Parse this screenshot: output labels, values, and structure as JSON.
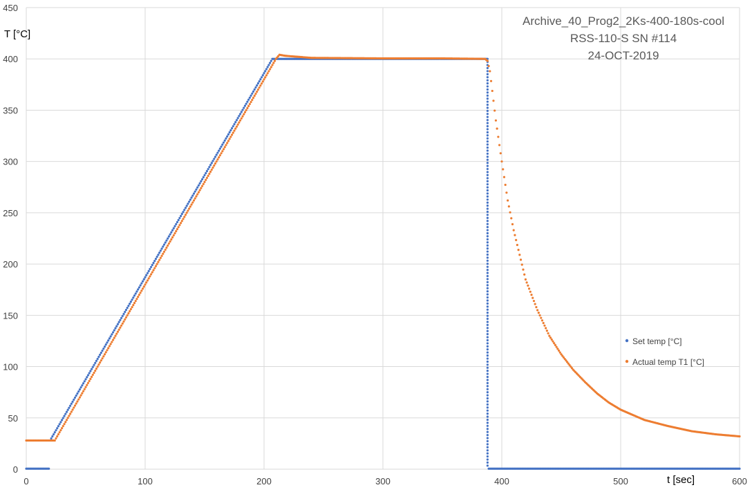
{
  "chart_data": {
    "type": "scatter",
    "title_lines": [
      "Archive_40_Prog2_2Ks-400-180s-cool",
      "RSS-110-S SN #114",
      "24-OCT-2019"
    ],
    "xlabel": "t [sec]",
    "ylabel": "T [°C]",
    "xlim": [
      0,
      600
    ],
    "ylim": [
      0,
      450
    ],
    "xticks": [
      0,
      100,
      200,
      300,
      400,
      500,
      600
    ],
    "yticks": [
      0,
      50,
      100,
      150,
      200,
      250,
      300,
      350,
      400,
      450
    ],
    "grid": true,
    "legend_position": "right",
    "series": [
      {
        "name": "Set temp [°C]",
        "color": "#4472C4",
        "marker": "dot",
        "points": [
          [
            0,
            0.5
          ],
          [
            19,
            0.5
          ],
          [
            20,
            28
          ],
          [
            207,
            400
          ],
          [
            388,
            400
          ],
          [
            388,
            0.5
          ],
          [
            600,
            0.5
          ]
        ]
      },
      {
        "name": "Actual temp T1 [°C]",
        "color": "#ED7D31",
        "marker": "dot",
        "points": [
          [
            0,
            28
          ],
          [
            20,
            28
          ],
          [
            24,
            28
          ],
          [
            210,
            400
          ],
          [
            213,
            404
          ],
          [
            218,
            403
          ],
          [
            240,
            401
          ],
          [
            300,
            400.5
          ],
          [
            350,
            400.5
          ],
          [
            386,
            400
          ],
          [
            388,
            398
          ],
          [
            390,
            388
          ],
          [
            395,
            340
          ],
          [
            400,
            300
          ],
          [
            405,
            262
          ],
          [
            410,
            233
          ],
          [
            420,
            185
          ],
          [
            430,
            155
          ],
          [
            440,
            130
          ],
          [
            450,
            112
          ],
          [
            460,
            97
          ],
          [
            470,
            85
          ],
          [
            480,
            74
          ],
          [
            490,
            65
          ],
          [
            500,
            58
          ],
          [
            520,
            48
          ],
          [
            540,
            42
          ],
          [
            560,
            37
          ],
          [
            580,
            34
          ],
          [
            600,
            32
          ]
        ]
      }
    ]
  }
}
